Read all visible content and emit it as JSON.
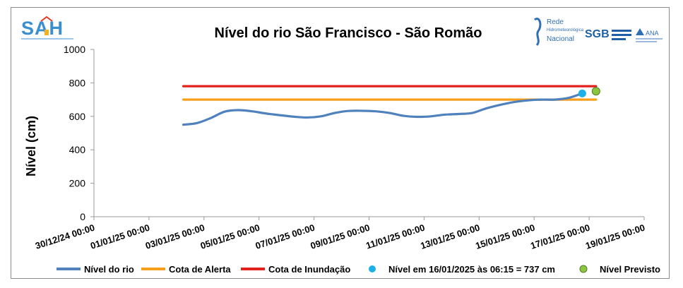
{
  "chart_data": {
    "type": "line",
    "title": "Nível do rio São Francisco - São Romão",
    "ylabel": "Nível (cm)",
    "xlabel": "",
    "ylim": [
      0,
      1000
    ],
    "yticks": [
      0,
      200,
      400,
      600,
      800,
      1000
    ],
    "xticks": [
      "30/12/24 00:00",
      "01/01/25 00:00",
      "03/01/25 00:00",
      "05/01/25 00:00",
      "07/01/25 00:00",
      "09/01/25 00:00",
      "11/01/25 00:00",
      "13/01/25 00:00",
      "15/01/25 00:00",
      "17/01/25 00:00",
      "19/01/25 00:00"
    ],
    "grid": false,
    "legend_position": "bottom",
    "series": [
      {
        "name": "Nível do rio",
        "color": "#4f81bd",
        "points": [
          [
            "02/01/25 06:00",
            550
          ],
          [
            "02/01/25 18:00",
            560
          ],
          [
            "03/01/25 06:00",
            590
          ],
          [
            "03/01/25 18:00",
            628
          ],
          [
            "04/01/25 06:00",
            637
          ],
          [
            "04/01/25 18:00",
            630
          ],
          [
            "05/01/25 06:00",
            617
          ],
          [
            "05/01/25 18:00",
            607
          ],
          [
            "06/01/25 06:00",
            598
          ],
          [
            "06/01/25 18:00",
            593
          ],
          [
            "07/01/25 06:00",
            600
          ],
          [
            "07/01/25 18:00",
            620
          ],
          [
            "08/01/25 06:00",
            632
          ],
          [
            "08/01/25 18:00",
            633
          ],
          [
            "09/01/25 06:00",
            630
          ],
          [
            "09/01/25 18:00",
            620
          ],
          [
            "10/01/25 06:00",
            603
          ],
          [
            "10/01/25 18:00",
            597
          ],
          [
            "11/01/25 06:00",
            600
          ],
          [
            "11/01/25 18:00",
            610
          ],
          [
            "12/01/25 06:00",
            614
          ],
          [
            "12/01/25 18:00",
            620
          ],
          [
            "13/01/25 06:00",
            647
          ],
          [
            "13/01/25 18:00",
            668
          ],
          [
            "14/01/25 06:00",
            685
          ],
          [
            "14/01/25 18:00",
            695
          ],
          [
            "15/01/25 06:00",
            700
          ],
          [
            "15/01/25 18:00",
            700
          ],
          [
            "16/01/25 06:00",
            710
          ],
          [
            "16/01/25 18:00",
            737
          ]
        ]
      },
      {
        "name": "Cota de Alerta",
        "color": "#f79e1b",
        "points": [
          [
            "02/01/25 06:00",
            700
          ],
          [
            "17/01/25 06:00",
            700
          ]
        ]
      },
      {
        "name": "Cota de Inundação",
        "color": "#e2211c",
        "points": [
          [
            "02/01/25 06:00",
            780
          ],
          [
            "17/01/25 06:00",
            780
          ]
        ]
      },
      {
        "name": "Nível em 16/01/2025 às 06:15 = 737 cm",
        "color": "#1cb0e8",
        "points": [
          [
            "16/01/25 18:00",
            737
          ]
        ]
      },
      {
        "name": "Nível Previsto",
        "color": "#8cc63f",
        "points": [
          [
            "17/01/25 06:00",
            750
          ]
        ]
      }
    ]
  },
  "logos": {
    "left": "SAH",
    "right_rede": "Rede",
    "right_hidro": "Hidrometeorológica",
    "right_nacional": "Nacional",
    "right_sgb": "SGB",
    "right_ana": "ANA"
  },
  "colors": {
    "axis": "#9a9a9a",
    "text": "#000000",
    "sah_blue": "#3a8fd0"
  }
}
